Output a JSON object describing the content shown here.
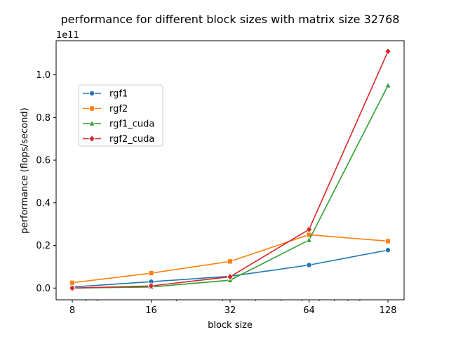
{
  "chart_data": {
    "type": "line",
    "title": "performance for different block sizes with matrix size 32768",
    "xlabel": "block size",
    "ylabel": "performance (flops/second)",
    "x_scale": "log2",
    "x": [
      8,
      16,
      32,
      64,
      128
    ],
    "x_tick_labels": [
      "8",
      "16",
      "32",
      "64",
      "128"
    ],
    "y_offset_text": "1e11",
    "y_ticks": [
      0.0,
      0.2,
      0.4,
      0.6,
      0.8,
      1.0
    ],
    "y_tick_labels": [
      "0.0",
      "0.2",
      "0.4",
      "0.6",
      "0.8",
      "1.0"
    ],
    "ylim": [
      -0.055,
      1.16
    ],
    "grid": false,
    "legend_position": "upper-left",
    "series": [
      {
        "name": "rgf1",
        "marker": "circle",
        "color": "#1f77b4",
        "values": [
          0.005,
          0.03,
          0.055,
          0.108,
          0.178
        ]
      },
      {
        "name": "rgf2",
        "marker": "square",
        "color": "#ff7f0e",
        "values": [
          0.025,
          0.07,
          0.125,
          0.25,
          0.22
        ]
      },
      {
        "name": "rgf1_cuda",
        "marker": "triangle",
        "color": "#2ca02c",
        "values": [
          0.0,
          0.005,
          0.037,
          0.225,
          0.95
        ]
      },
      {
        "name": "rgf2_cuda",
        "marker": "diamond",
        "color": "#d62728",
        "values": [
          0.0,
          0.01,
          0.053,
          0.275,
          1.11
        ]
      }
    ]
  }
}
